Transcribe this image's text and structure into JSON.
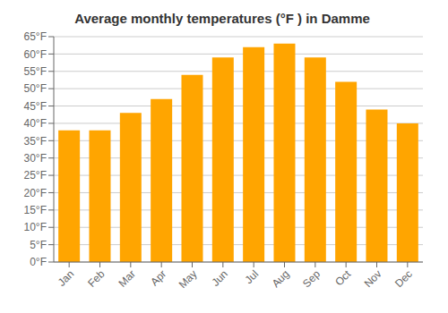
{
  "chart_data": {
    "type": "bar",
    "title": "Average monthly temperatures (°F ) in Damme",
    "categories": [
      "Jan",
      "Feb",
      "Mar",
      "Apr",
      "May",
      "Jun",
      "Jul",
      "Aug",
      "Sep",
      "Oct",
      "Nov",
      "Dec"
    ],
    "values": [
      38,
      38,
      43,
      47,
      54,
      59,
      62,
      63,
      59,
      52,
      44,
      40
    ],
    "color": "#FFA500",
    "ylim": [
      0,
      65
    ],
    "yticks": [
      {
        "value": 0,
        "label": "0°F"
      },
      {
        "value": 5,
        "label": "5°F"
      },
      {
        "value": 10,
        "label": "10°F"
      },
      {
        "value": 15,
        "label": "15°F"
      },
      {
        "value": 20,
        "label": "20°F"
      },
      {
        "value": 25,
        "label": "25°F"
      },
      {
        "value": 30,
        "label": "30°F"
      },
      {
        "value": 35,
        "label": "35°F"
      },
      {
        "value": 40,
        "label": "40°F"
      },
      {
        "value": 45,
        "label": "45°F"
      },
      {
        "value": 50,
        "label": "50°F"
      },
      {
        "value": 55,
        "label": "55°F"
      },
      {
        "value": 60,
        "label": "60°F"
      },
      {
        "value": 65,
        "label": "65°F"
      }
    ],
    "grid": true
  }
}
